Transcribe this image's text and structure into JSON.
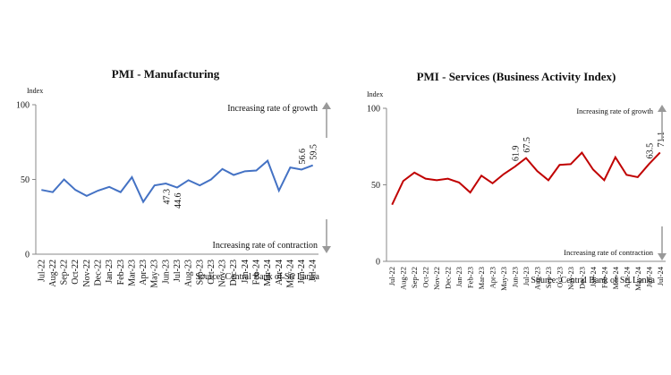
{
  "chart_data": [
    {
      "type": "line",
      "title": "PMI - Manufacturing",
      "y_label": "Index",
      "categories": [
        "Jul-22",
        "Aug-22",
        "Sep-22",
        "Oct-22",
        "Nov-22",
        "Dec-22",
        "Jan-23",
        "Feb-23",
        "Mar-23",
        "Apr-23",
        "May-23",
        "Jun-23",
        "Jul-23",
        "Aug-23",
        "Sep-23",
        "Oct-23",
        "Nov-23",
        "Dec-23",
        "Jan-24",
        "Feb-24",
        "Mar-24",
        "Apr-24",
        "May-24",
        "Jun-24",
        "Jul-24"
      ],
      "values": [
        43,
        41.5,
        50,
        43,
        39,
        42.5,
        45,
        41.5,
        51.5,
        35,
        46,
        47.3,
        44.6,
        49.5,
        46,
        50,
        57,
        53,
        55.5,
        56,
        62.5,
        42.5,
        58,
        56.6,
        59.5
      ],
      "value_labels": [
        null,
        null,
        null,
        null,
        null,
        null,
        null,
        null,
        null,
        null,
        null,
        "47.3",
        "44.6",
        null,
        null,
        null,
        null,
        null,
        null,
        null,
        null,
        null,
        null,
        "56.6",
        "59.5"
      ],
      "color": "#4472c4",
      "ylim": [
        0,
        100
      ],
      "yticks": [
        0,
        50,
        100
      ],
      "annotations": [
        "Increasing rate of growth",
        "Increasing rate of contraction"
      ],
      "source": "Source: Central Bank of Sri Lanka"
    },
    {
      "type": "line",
      "title": "PMI - Services (Business Activity Index)",
      "y_label": "Index",
      "categories": [
        "Jul-22",
        "Aug-22",
        "Sep-22",
        "Oct-22",
        "Nov-22",
        "Dec-22",
        "Jan-23",
        "Feb-23",
        "Mar-23",
        "Apr-23",
        "May-23",
        "Jun-23",
        "Jul-23",
        "Aug-23",
        "Sep-23",
        "Oct-23",
        "Nov-23",
        "Dec-23",
        "Jan-24",
        "Feb-24",
        "Mar-24",
        "Apr-24",
        "May-24",
        "Jun-24",
        "Jul-24"
      ],
      "values": [
        37,
        52.5,
        58,
        54,
        53,
        54,
        51.5,
        45,
        56,
        51,
        57,
        61.9,
        67.5,
        59,
        53,
        63,
        63.5,
        71,
        60,
        53,
        68,
        56.5,
        55,
        63.5,
        71.1
      ],
      "value_labels": [
        null,
        null,
        null,
        null,
        null,
        null,
        null,
        null,
        null,
        null,
        null,
        "61.9",
        "67.5",
        null,
        null,
        null,
        null,
        null,
        null,
        null,
        null,
        null,
        null,
        "63.5",
        "71.1"
      ],
      "color": "#c00000",
      "ylim": [
        0,
        100
      ],
      "yticks": [
        0,
        50,
        100
      ],
      "annotations": [
        "Increasing rate of growth",
        "Increasing rate of contraction"
      ],
      "source": "Source: Central Bank of Sri Lanka"
    }
  ]
}
